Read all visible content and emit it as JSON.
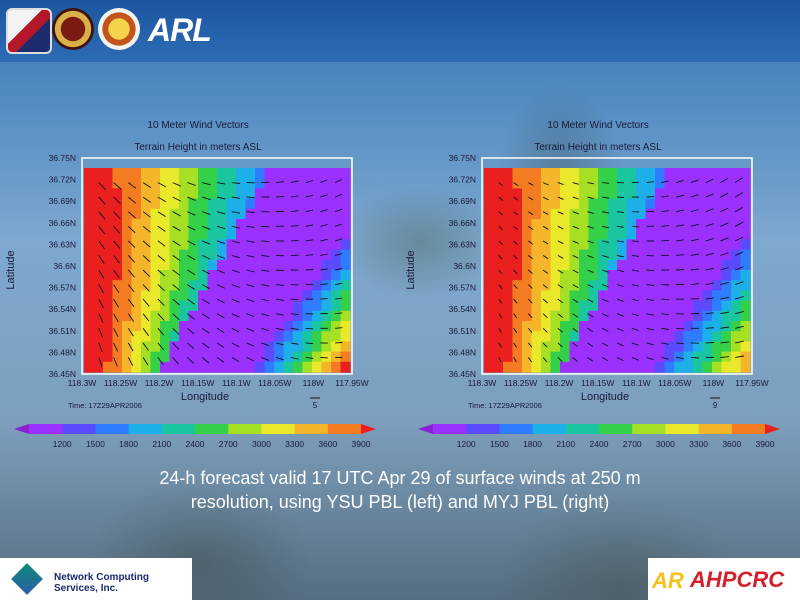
{
  "header": {
    "logos": [
      "army-materiel-command-icon",
      "army-seal-icon",
      "corps-of-engineers-icon"
    ],
    "arl_logo": "ARL"
  },
  "chart_data": [
    {
      "type": "heatmap",
      "title": "10 Meter Wind Vectors",
      "subtitle": "Terrain Height in meters ASL",
      "xlabel": "Longitude",
      "ylabel": "Latitude",
      "x_ticks": [
        "118.3W",
        "118.25W",
        "118.2W",
        "118.15W",
        "118.1W",
        "118.05W",
        "118W",
        "117.95W"
      ],
      "y_ticks": [
        "36.75N",
        "36.72N",
        "36.69N",
        "36.66N",
        "36.63N",
        "36.6N",
        "36.57N",
        "36.54N",
        "36.51N",
        "36.48N",
        "36.45N"
      ],
      "time": "Time: 17Z29APR2006",
      "ref_vector": "5",
      "scheme": "YSU PBL"
    },
    {
      "type": "heatmap",
      "title": "10 Meter Wind Vectors",
      "subtitle": "Terrain Height in meters ASL",
      "xlabel": "Longitude",
      "ylabel": "Latitude",
      "x_ticks": [
        "118.3W",
        "118.25W",
        "118.2W",
        "118.15W",
        "118.1W",
        "118.05W",
        "118W",
        "117.95W"
      ],
      "y_ticks": [
        "36.75N",
        "36.72N",
        "36.69N",
        "36.66N",
        "36.63N",
        "36.6N",
        "36.57N",
        "36.54N",
        "36.51N",
        "36.48N",
        "36.45N"
      ],
      "time": "Time: 17Z29APR2006",
      "ref_vector": "9",
      "scheme": "MYJ PBL"
    }
  ],
  "colorbar": {
    "levels": [
      "1200",
      "1500",
      "1800",
      "2100",
      "2400",
      "2700",
      "3000",
      "3300",
      "3600",
      "3900"
    ],
    "colors": [
      "#8a1fd6",
      "#9b30ff",
      "#5b4bff",
      "#2f7cff",
      "#1db0e8",
      "#19c6a0",
      "#35d04a",
      "#a6e025",
      "#e9e82a",
      "#f5b52a",
      "#f37c23",
      "#ea1f1f"
    ]
  },
  "caption": {
    "line1": "24-h forecast valid 17 UTC Apr 29 of surface winds at 250 m",
    "line2": "resolution, using YSU PBL (left) and MYJ PBL (right)"
  },
  "footer": {
    "ncs_text": "Network Computing Services, Inc.",
    "ahpcrc_mark": "AR",
    "ahpcrc_text": "AHPCRC"
  }
}
